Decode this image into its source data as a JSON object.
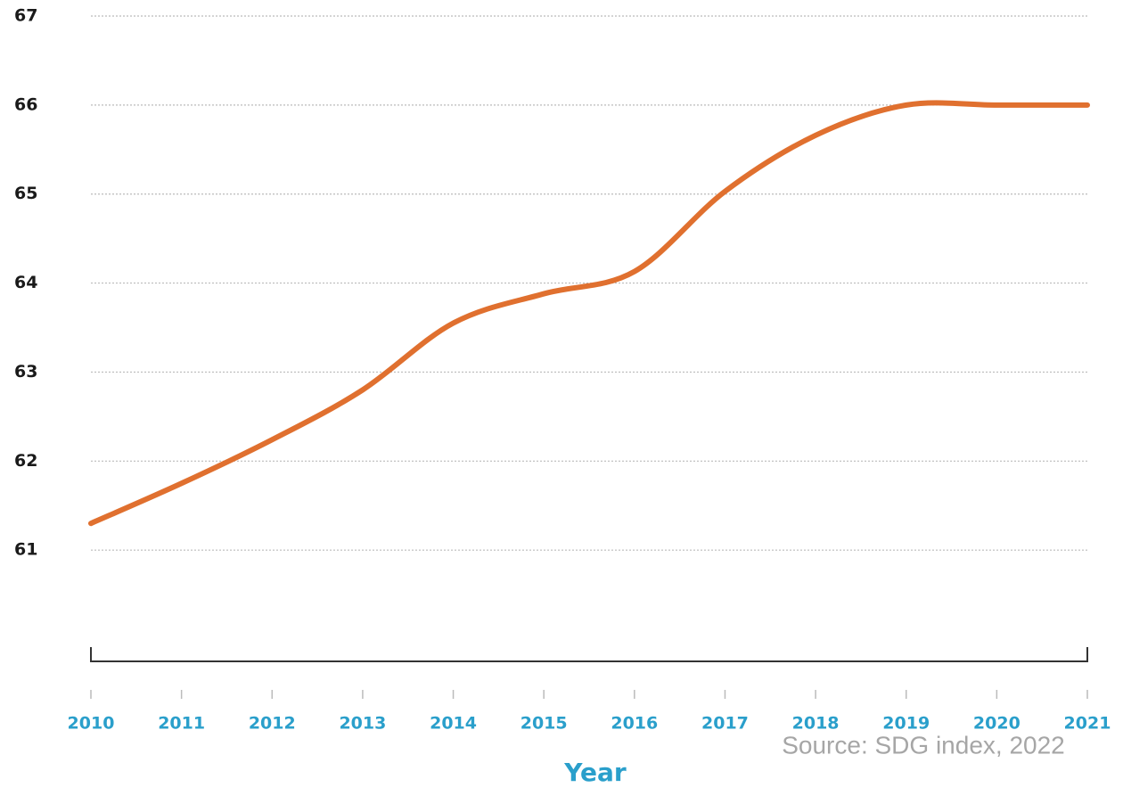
{
  "chart_data": {
    "type": "line",
    "x": [
      2010,
      2011,
      2012,
      2013,
      2014,
      2015,
      2016,
      2017,
      2018,
      2019,
      2020,
      2021
    ],
    "series": [
      {
        "name": null,
        "color": "#e0702f",
        "values": [
          61.3,
          61.75,
          62.24,
          62.8,
          63.55,
          63.88,
          64.13,
          65.03,
          65.66,
          66,
          66,
          66
        ]
      }
    ],
    "xlim": [
      2010,
      2021
    ],
    "xticks": [
      2010,
      2011,
      2012,
      2013,
      2014,
      2015,
      2016,
      2017,
      2018,
      2019,
      2020,
      2021
    ],
    "ylim": [
      59.75,
      67
    ],
    "yticks": [
      61,
      62,
      63,
      64,
      65,
      66,
      67
    ],
    "grid": true,
    "x_label": "Year",
    "source": "Source: SDG index, 2022"
  }
}
